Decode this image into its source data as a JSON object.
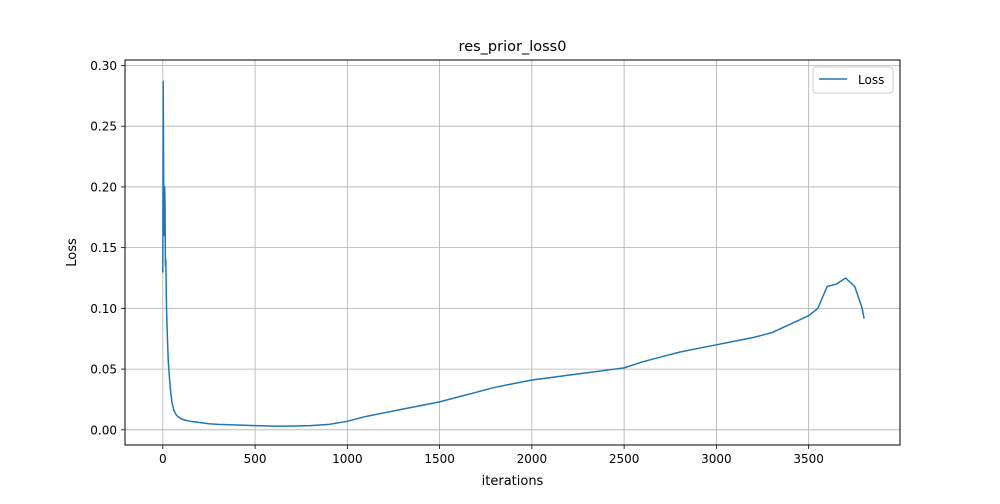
{
  "colors": {
    "series": "#1f77b4",
    "grid": "#b0b0b0",
    "axis": "#000000",
    "background": "#ffffff"
  },
  "chart_data": {
    "type": "line",
    "title": "res_prior_loss0",
    "xlabel": "iterations",
    "ylabel": "Loss",
    "xlim": [
      -205,
      3995
    ],
    "ylim": [
      -0.0125,
      0.3045
    ],
    "xticks": [
      0,
      500,
      1000,
      1500,
      2000,
      2500,
      3000,
      3500
    ],
    "yticks": [
      0.0,
      0.05,
      0.1,
      0.15,
      0.2,
      0.25,
      0.3
    ],
    "xtick_labels": [
      "0",
      "500",
      "1000",
      "1500",
      "2000",
      "2500",
      "3000",
      "3500"
    ],
    "ytick_labels": [
      "0.00",
      "0.05",
      "0.10",
      "0.15",
      "0.20",
      "0.25",
      "0.30"
    ],
    "grid": true,
    "legend": {
      "location": "top-right",
      "entries": [
        "Loss"
      ]
    },
    "series": [
      {
        "name": "Loss",
        "color": "#1f77b4",
        "x": [
          0,
          2,
          4,
          6,
          8,
          10,
          12,
          14,
          16,
          18,
          20,
          25,
          30,
          35,
          40,
          45,
          50,
          60,
          70,
          80,
          90,
          100,
          120,
          150,
          200,
          250,
          300,
          400,
          500,
          600,
          700,
          800,
          900,
          1000,
          1100,
          1200,
          1300,
          1400,
          1500,
          1600,
          1700,
          1800,
          1900,
          2000,
          2100,
          2200,
          2300,
          2400,
          2500,
          2600,
          2700,
          2800,
          2900,
          3000,
          3100,
          3200,
          3300,
          3400,
          3500,
          3550,
          3600,
          3650,
          3700,
          3750,
          3790,
          3800
        ],
        "y": [
          0.13,
          0.287,
          0.225,
          0.16,
          0.18,
          0.2,
          0.185,
          0.135,
          0.14,
          0.12,
          0.1,
          0.075,
          0.055,
          0.045,
          0.035,
          0.028,
          0.022,
          0.016,
          0.013,
          0.011,
          0.01,
          0.009,
          0.008,
          0.007,
          0.006,
          0.005,
          0.0045,
          0.004,
          0.0035,
          0.003,
          0.003,
          0.0035,
          0.0045,
          0.007,
          0.011,
          0.014,
          0.017,
          0.02,
          0.023,
          0.027,
          0.031,
          0.035,
          0.038,
          0.041,
          0.043,
          0.045,
          0.047,
          0.049,
          0.051,
          0.056,
          0.06,
          0.064,
          0.067,
          0.07,
          0.073,
          0.076,
          0.08,
          0.087,
          0.094,
          0.1,
          0.118,
          0.12,
          0.125,
          0.118,
          0.1,
          0.092
        ]
      }
    ]
  }
}
